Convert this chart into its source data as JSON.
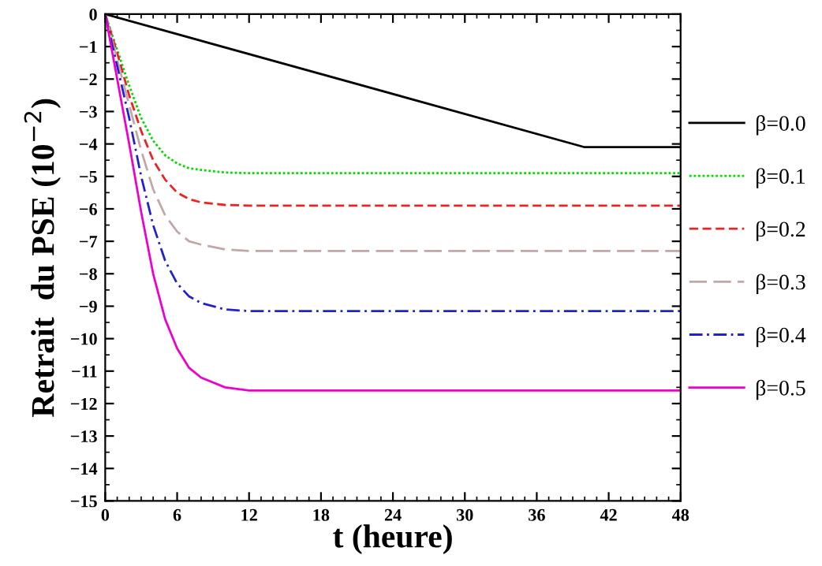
{
  "chart_data": {
    "type": "line",
    "xlabel": "t (heure)",
    "ylabel": "Retrait  du PSE (10$^{−2}$)",
    "xlim": [
      0,
      48
    ],
    "ylim": [
      -15,
      0
    ],
    "xticks": [
      0,
      6,
      12,
      18,
      24,
      30,
      36,
      42,
      48
    ],
    "yticks": [
      0,
      -1,
      -2,
      -3,
      -4,
      -5,
      -6,
      -7,
      -8,
      -9,
      -10,
      -11,
      -12,
      -13,
      -14,
      -15
    ],
    "grid": false,
    "legend": "right",
    "marker": "none",
    "series": [
      {
        "name": "β=0.0",
        "color": "#000000",
        "line_style": "solid",
        "x": [
          0,
          40,
          48
        ],
        "values": [
          0,
          -4.1,
          -4.1
        ]
      },
      {
        "name": "β=0.1",
        "color": "#00dd00",
        "line_style": "dotted",
        "x": [
          0,
          1,
          2,
          3,
          4,
          5,
          6,
          7,
          8,
          10,
          12,
          48
        ],
        "values": [
          0,
          -1.1,
          -2.2,
          -3.2,
          -3.9,
          -4.35,
          -4.6,
          -4.75,
          -4.8,
          -4.88,
          -4.9,
          -4.9
        ]
      },
      {
        "name": "β=0.2",
        "color": "#ee2222",
        "line_style": "dashed",
        "x": [
          0,
          1,
          2,
          3,
          4,
          5,
          6,
          7,
          8,
          10,
          12,
          48
        ],
        "values": [
          0,
          -1.2,
          -2.5,
          -3.6,
          -4.5,
          -5.1,
          -5.5,
          -5.7,
          -5.8,
          -5.88,
          -5.9,
          -5.9
        ]
      },
      {
        "name": "β=0.3",
        "color": "#c0a8a8",
        "line_style": "longdash",
        "x": [
          0,
          1,
          2,
          3,
          4,
          5,
          6,
          7,
          8,
          10,
          12,
          48
        ],
        "values": [
          0,
          -1.4,
          -2.8,
          -4.2,
          -5.4,
          -6.2,
          -6.7,
          -7.0,
          -7.1,
          -7.25,
          -7.3,
          -7.3
        ]
      },
      {
        "name": "β=0.4",
        "color": "#2222cc",
        "line_style": "dashdot",
        "x": [
          0,
          1,
          2,
          3,
          4,
          5,
          6,
          7,
          8,
          10,
          12,
          48
        ],
        "values": [
          0,
          -1.6,
          -3.2,
          -5.0,
          -6.5,
          -7.6,
          -8.3,
          -8.7,
          -8.9,
          -9.1,
          -9.15,
          -9.15
        ]
      },
      {
        "name": "β=0.5",
        "color": "#ee00cc",
        "line_style": "solid",
        "x": [
          0,
          1,
          2,
          3,
          4,
          5,
          6,
          7,
          8,
          10,
          12,
          48
        ],
        "values": [
          0,
          -2.0,
          -4.0,
          -6.1,
          -8.0,
          -9.4,
          -10.3,
          -10.9,
          -11.2,
          -11.5,
          -11.6,
          -11.6
        ]
      }
    ]
  }
}
